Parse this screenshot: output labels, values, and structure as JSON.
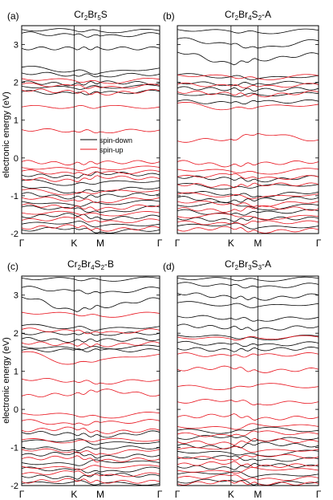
{
  "figure": {
    "ylabel": "electronic energy (eV)",
    "legend": {
      "items": [
        {
          "label": "spin-down",
          "color": "#000000"
        },
        {
          "label": "spin-up",
          "color": "#e8101a"
        }
      ]
    },
    "colors": {
      "spin_down": "#000000",
      "spin_up": "#e8101a",
      "frame": "#000000"
    }
  },
  "chart_data": [
    {
      "type": "line",
      "panel": "(a)",
      "title": [
        "Cr",
        "2",
        "Br",
        "5",
        "S"
      ],
      "x_ticks": [
        "Γ",
        "K",
        "M",
        "Γ"
      ],
      "x_tick_positions": [
        0,
        0.38,
        0.57,
        1
      ],
      "ylim": [
        -2,
        3.5
      ],
      "y_ticks": [
        -2,
        -1,
        0,
        1,
        2,
        3
      ],
      "series": [
        {
          "name": "spin-down",
          "color": "#000000",
          "bands": [
            [
              3.4,
              3.38,
              3.35,
              3.37
            ],
            [
              3.3,
              3.25,
              3.22,
              3.28
            ],
            [
              2.9,
              2.9,
              2.9,
              2.9
            ],
            [
              2.4,
              2.3,
              2.25,
              2.38
            ],
            [
              2.25,
              2.2,
              2.18,
              2.22
            ],
            [
              2.0,
              1.95,
              2.0,
              1.98
            ],
            [
              1.9,
              1.85,
              1.88,
              1.9
            ],
            [
              1.75,
              1.7,
              1.72,
              1.76
            ],
            [
              -0.45,
              -0.5,
              -0.4,
              -0.45
            ],
            [
              -0.6,
              -0.7,
              -0.65,
              -0.6
            ],
            [
              -0.75,
              -0.9,
              -0.85,
              -0.78
            ],
            [
              -0.95,
              -1.05,
              -1.0,
              -0.95
            ],
            [
              -1.15,
              -1.25,
              -1.2,
              -1.15
            ],
            [
              -1.3,
              -1.35,
              -1.45,
              -1.3
            ],
            [
              -1.55,
              -1.5,
              -1.6,
              -1.55
            ],
            [
              -1.75,
              -1.7,
              -1.8,
              -1.75
            ],
            [
              -1.9,
              -1.85,
              -1.95,
              -1.9
            ]
          ]
        },
        {
          "name": "spin-up",
          "color": "#e8101a",
          "bands": [
            [
              2.1,
              2.05,
              2.0,
              2.08
            ],
            [
              1.95,
              1.9,
              1.85,
              1.92
            ],
            [
              1.8,
              1.75,
              1.7,
              1.78
            ],
            [
              1.35,
              1.35,
              1.35,
              1.35
            ],
            [
              0.75,
              0.72,
              0.7,
              0.74
            ],
            [
              -0.1,
              -0.15,
              -0.12,
              -0.1
            ],
            [
              -0.25,
              -0.3,
              -0.28,
              -0.25
            ],
            [
              -0.35,
              -0.42,
              -0.4,
              -0.36
            ],
            [
              -0.55,
              -0.6,
              -0.5,
              -0.55
            ],
            [
              -0.85,
              -0.95,
              -0.9,
              -0.85
            ],
            [
              -1.05,
              -1.1,
              -1.15,
              -1.05
            ],
            [
              -1.25,
              -1.3,
              -1.35,
              -1.25
            ],
            [
              -1.45,
              -1.45,
              -1.5,
              -1.45
            ],
            [
              -1.65,
              -1.6,
              -1.7,
              -1.65
            ],
            [
              -1.85,
              -1.8,
              -1.9,
              -1.85
            ]
          ]
        }
      ]
    },
    {
      "type": "line",
      "panel": "(b)",
      "title": [
        "Cr",
        "2",
        "Br",
        "4",
        "S",
        "2",
        "-A"
      ],
      "x_ticks": [
        "Γ",
        "K",
        "M",
        "Γ"
      ],
      "x_tick_positions": [
        0,
        0.38,
        0.57,
        1
      ],
      "ylim": [
        -2,
        3.5
      ],
      "y_ticks": [
        -2,
        -1,
        0,
        1,
        2,
        3
      ],
      "series": [
        {
          "name": "spin-down",
          "color": "#000000",
          "bands": [
            [
              3.4,
              3.35,
              3.32,
              3.38
            ],
            [
              3.15,
              3.0,
              2.9,
              3.1
            ],
            [
              2.8,
              2.5,
              2.6,
              2.75
            ],
            [
              2.2,
              2.15,
              2.1,
              2.18
            ],
            [
              2.0,
              1.95,
              1.98,
              2.0
            ],
            [
              1.85,
              1.82,
              1.8,
              1.84
            ],
            [
              1.7,
              1.65,
              1.68,
              1.7
            ],
            [
              1.5,
              1.45,
              1.48,
              1.5
            ],
            [
              -0.5,
              -0.55,
              -0.6,
              -0.5
            ],
            [
              -0.7,
              -0.8,
              -0.75,
              -0.7
            ],
            [
              -0.9,
              -0.95,
              -1.0,
              -0.9
            ],
            [
              -1.05,
              -1.15,
              -1.1,
              -1.05
            ],
            [
              -1.25,
              -1.2,
              -1.35,
              -1.25
            ],
            [
              -1.4,
              -1.5,
              -1.45,
              -1.4
            ],
            [
              -1.6,
              -1.65,
              -1.6,
              -1.6
            ],
            [
              -1.8,
              -1.75,
              -1.85,
              -1.8
            ]
          ]
        },
        {
          "name": "spin-up",
          "color": "#e8101a",
          "bands": [
            [
              2.2,
              2.15,
              2.1,
              2.18
            ],
            [
              1.95,
              1.9,
              1.88,
              1.94
            ],
            [
              1.75,
              1.7,
              1.65,
              1.74
            ],
            [
              1.45,
              1.3,
              1.35,
              1.42
            ],
            [
              0.45,
              0.5,
              0.65,
              0.48
            ],
            [
              -0.1,
              -0.2,
              -0.15,
              -0.1
            ],
            [
              -0.3,
              -0.35,
              -0.4,
              -0.3
            ],
            [
              -0.5,
              -0.45,
              -0.55,
              -0.5
            ],
            [
              -0.7,
              -0.75,
              -0.7,
              -0.7
            ],
            [
              -0.95,
              -1.0,
              -1.05,
              -0.95
            ],
            [
              -1.15,
              -1.2,
              -1.25,
              -1.15
            ],
            [
              -1.35,
              -1.4,
              -1.3,
              -1.35
            ],
            [
              -1.55,
              -1.5,
              -1.6,
              -1.55
            ],
            [
              -1.7,
              -1.75,
              -1.7,
              -1.7
            ],
            [
              -1.9,
              -1.85,
              -1.95,
              -1.9
            ]
          ]
        }
      ]
    },
    {
      "type": "line",
      "panel": "(c)",
      "title": [
        "Cr",
        "2",
        "Br",
        "4",
        "S",
        "2",
        "-B"
      ],
      "x_ticks": [
        "Γ",
        "K",
        "M",
        "Γ"
      ],
      "x_tick_positions": [
        0,
        0.38,
        0.57,
        1
      ],
      "ylim": [
        -2,
        3.5
      ],
      "y_ticks": [
        -2,
        -1,
        0,
        1,
        2,
        3
      ],
      "series": [
        {
          "name": "spin-down",
          "color": "#000000",
          "bands": [
            [
              3.45,
              3.42,
              3.4,
              3.44
            ],
            [
              3.2,
              3.1,
              3.05,
              3.18
            ],
            [
              2.95,
              2.6,
              2.7,
              2.9
            ],
            [
              2.2,
              2.15,
              2.1,
              2.18
            ],
            [
              2.0,
              2.0,
              1.98,
              2.0
            ],
            [
              1.85,
              1.8,
              1.82,
              1.84
            ],
            [
              1.65,
              1.6,
              1.62,
              1.65
            ],
            [
              1.55,
              1.55,
              1.55,
              1.55
            ],
            [
              -0.6,
              -0.65,
              -0.7,
              -0.6
            ],
            [
              -0.85,
              -0.8,
              -0.9,
              -0.85
            ],
            [
              -1.0,
              -1.05,
              -1.0,
              -1.0
            ],
            [
              -1.2,
              -1.15,
              -1.25,
              -1.2
            ],
            [
              -1.4,
              -1.45,
              -1.35,
              -1.4
            ],
            [
              -1.55,
              -1.6,
              -1.65,
              -1.55
            ],
            [
              -1.75,
              -1.8,
              -1.7,
              -1.75
            ],
            [
              -1.95,
              -1.9,
              -1.95,
              -1.95
            ]
          ]
        },
        {
          "name": "spin-up",
          "color": "#e8101a",
          "bands": [
            [
              2.55,
              2.5,
              2.45,
              2.52
            ],
            [
              2.1,
              2.05,
              2.0,
              2.08
            ],
            [
              1.75,
              1.7,
              1.68,
              1.74
            ],
            [
              1.5,
              1.2,
              1.3,
              1.45
            ],
            [
              0.8,
              0.75,
              0.7,
              0.78
            ],
            [
              0.35,
              0.4,
              0.5,
              0.38
            ],
            [
              -0.1,
              -0.15,
              -0.2,
              -0.1
            ],
            [
              -0.3,
              -0.4,
              -0.35,
              -0.3
            ],
            [
              -0.55,
              -0.5,
              -0.6,
              -0.55
            ],
            [
              -0.8,
              -0.85,
              -0.8,
              -0.8
            ],
            [
              -1.05,
              -1.1,
              -1.15,
              -1.05
            ],
            [
              -1.3,
              -1.25,
              -1.35,
              -1.3
            ],
            [
              -1.5,
              -1.55,
              -1.5,
              -1.5
            ],
            [
              -1.7,
              -1.65,
              -1.75,
              -1.7
            ],
            [
              -1.9,
              -1.85,
              -1.9,
              -1.9
            ]
          ]
        }
      ]
    },
    {
      "type": "line",
      "panel": "(d)",
      "title": [
        "Cr",
        "2",
        "Br",
        "3",
        "S",
        "3",
        "-A"
      ],
      "x_ticks": [
        "Γ",
        "K",
        "M",
        "Γ"
      ],
      "x_tick_positions": [
        0,
        0.38,
        0.57,
        1
      ],
      "ylim": [
        -2,
        3.5
      ],
      "y_ticks": [
        -2,
        -1,
        0,
        1,
        2,
        3
      ],
      "series": [
        {
          "name": "spin-down",
          "color": "#000000",
          "bands": [
            [
              3.45,
              3.42,
              3.4,
              3.44
            ],
            [
              3.3,
              3.25,
              3.2,
              3.28
            ],
            [
              3.05,
              2.95,
              2.9,
              3.0
            ],
            [
              2.8,
              2.75,
              2.7,
              2.78
            ],
            [
              2.45,
              2.4,
              2.35,
              2.42
            ],
            [
              2.2,
              2.15,
              2.1,
              2.18
            ],
            [
              1.95,
              1.9,
              1.85,
              1.92
            ],
            [
              1.75,
              1.7,
              1.68,
              1.74
            ],
            [
              1.6,
              1.55,
              1.58,
              1.6
            ],
            [
              -0.55,
              -0.6,
              -0.5,
              -0.55
            ],
            [
              -0.75,
              -0.7,
              -0.8,
              -0.75
            ],
            [
              -0.95,
              -1.0,
              -0.9,
              -0.95
            ],
            [
              -1.1,
              -1.15,
              -1.2,
              -1.1
            ],
            [
              -1.3,
              -1.25,
              -1.35,
              -1.3
            ],
            [
              -1.5,
              -1.55,
              -1.45,
              -1.5
            ],
            [
              -1.7,
              -1.65,
              -1.75,
              -1.7
            ],
            [
              -1.9,
              -1.85,
              -1.95,
              -1.9
            ]
          ]
        },
        {
          "name": "spin-up",
          "color": "#e8101a",
          "bands": [
            [
              1.9,
              1.85,
              1.88,
              1.9
            ],
            [
              1.45,
              1.4,
              1.42,
              1.45
            ],
            [
              1.05,
              1.1,
              1.0,
              1.05
            ],
            [
              0.6,
              0.55,
              0.65,
              0.6
            ],
            [
              0.2,
              0.25,
              0.15,
              0.2
            ],
            [
              -0.2,
              -0.15,
              -0.25,
              -0.2
            ],
            [
              -0.45,
              -0.5,
              -0.4,
              -0.45
            ],
            [
              -0.65,
              -0.7,
              -0.6,
              -0.65
            ],
            [
              -0.85,
              -0.9,
              -0.8,
              -0.85
            ],
            [
              -1.05,
              -1.0,
              -1.1,
              -1.05
            ],
            [
              -1.25,
              -1.3,
              -1.2,
              -1.25
            ],
            [
              -1.45,
              -1.4,
              -1.5,
              -1.45
            ],
            [
              -1.6,
              -1.65,
              -1.55,
              -1.6
            ],
            [
              -1.8,
              -1.75,
              -1.85,
              -1.8
            ],
            [
              -1.95,
              -1.9,
              -1.95,
              -1.95
            ]
          ]
        }
      ]
    }
  ]
}
